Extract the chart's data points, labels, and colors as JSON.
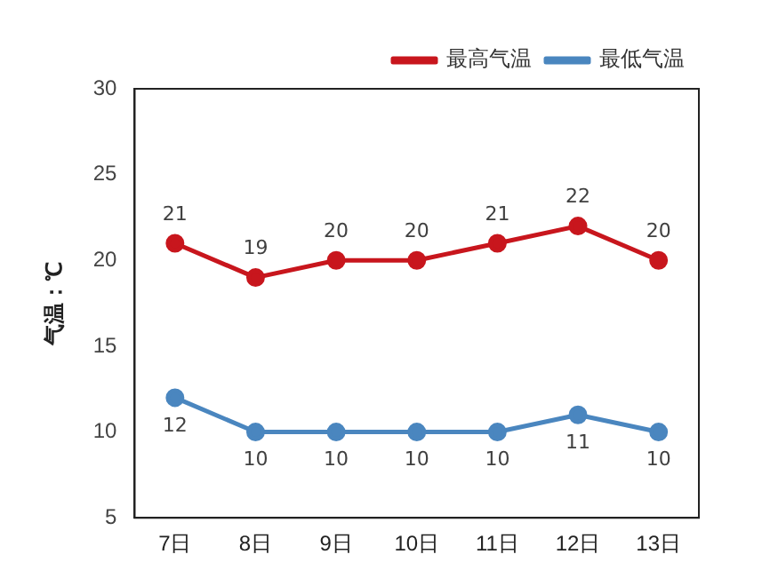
{
  "chart_data": {
    "type": "line",
    "ylabel": "气温：℃",
    "categories": [
      "7日",
      "8日",
      "9日",
      "10日",
      "11日",
      "12日",
      "13日"
    ],
    "series": [
      {
        "name": "最高气温",
        "color": "#c8161d",
        "values": [
          21,
          19,
          20,
          20,
          21,
          22,
          20
        ]
      },
      {
        "name": "最低气温",
        "color": "#4a86bf",
        "values": [
          12,
          10,
          10,
          10,
          10,
          11,
          10
        ]
      }
    ],
    "ylim": [
      5,
      30
    ],
    "yticks": [
      5,
      10,
      15,
      20,
      25,
      30
    ],
    "grid": false,
    "legend": "top right",
    "marker": "circle",
    "line_style": "solid",
    "data_labels": true
  }
}
